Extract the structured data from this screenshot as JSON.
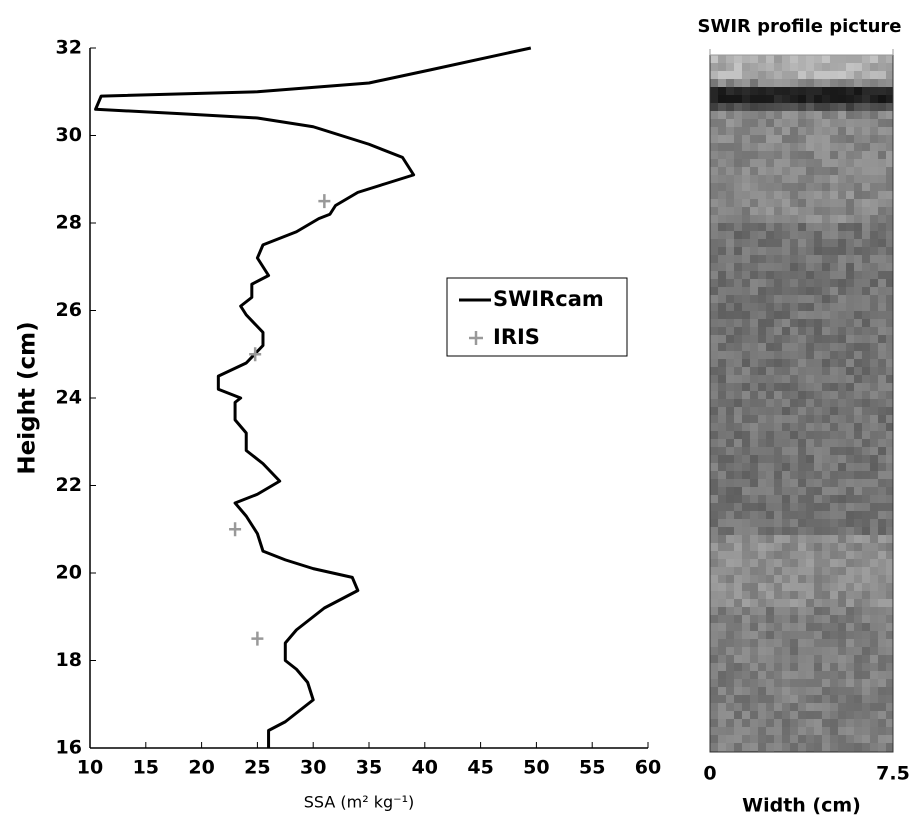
{
  "chart_data": [
    {
      "type": "line",
      "xlabel": "SSA (m² kg⁻¹)",
      "ylabel": "Height (cm)",
      "xlim": [
        10,
        60
      ],
      "xticks": [
        10,
        15,
        20,
        25,
        30,
        35,
        40,
        45,
        50,
        55,
        60
      ],
      "ylim": [
        16,
        32
      ],
      "yticks": [
        16,
        18,
        20,
        22,
        24,
        26,
        28,
        30,
        32
      ],
      "series": [
        {
          "name": "SWIRcam",
          "color": "#000000",
          "style": "line",
          "x": [
            26,
            26,
            27.5,
            29,
            30,
            29.5,
            28.5,
            27.5,
            27.5,
            28.5,
            31,
            34,
            33.5,
            30,
            27.5,
            25.5,
            25,
            24,
            23,
            25,
            27,
            25.5,
            24,
            24,
            23,
            23,
            23.5,
            21.5,
            21.5,
            24,
            25.5,
            25.5,
            24,
            23.5,
            24.5,
            24.5,
            26,
            25,
            25.5,
            28.5,
            30.5,
            31.5,
            32,
            34,
            36.5,
            39,
            38,
            35,
            30,
            25,
            18,
            10.5,
            11,
            25,
            35,
            40.5,
            49.5
          ],
          "y": [
            16,
            16.4,
            16.6,
            16.9,
            17.1,
            17.5,
            17.8,
            18.0,
            18.4,
            18.7,
            19.2,
            19.6,
            19.9,
            20.1,
            20.3,
            20.5,
            20.9,
            21.3,
            21.6,
            21.8,
            22.1,
            22.5,
            22.8,
            23.2,
            23.5,
            23.9,
            24.0,
            24.2,
            24.5,
            24.8,
            25.2,
            25.5,
            25.9,
            26.1,
            26.3,
            26.6,
            26.8,
            27.2,
            27.5,
            27.8,
            28.1,
            28.2,
            28.4,
            28.7,
            28.9,
            29.1,
            29.5,
            29.8,
            30.2,
            30.4,
            30.5,
            30.6,
            30.9,
            31.0,
            31.2,
            31.5,
            32
          ]
        },
        {
          "name": "IRIS",
          "color": "#999999",
          "style": "marker",
          "x": [
            31,
            24.8,
            23,
            25
          ],
          "y": [
            28.5,
            25,
            21,
            18.5
          ]
        }
      ]
    },
    {
      "type": "image",
      "title": "SWIR profile picture",
      "xlabel": "Width (cm)",
      "xlim": [
        0,
        7.5
      ],
      "xticks": [
        0,
        7.5
      ]
    }
  ]
}
